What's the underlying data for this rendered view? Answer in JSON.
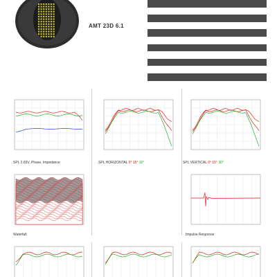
{
  "model": "AMT 23D 6.1",
  "spec_rows": [
    {
      "label": "",
      "value": ""
    },
    {
      "label": "",
      "value": ""
    },
    {
      "label": "",
      "value": ""
    },
    {
      "label": "",
      "value": ""
    },
    {
      "label": "",
      "value": ""
    },
    {
      "label": "",
      "value": ""
    },
    {
      "label": "",
      "value": ""
    },
    {
      "label": "",
      "value": ""
    },
    {
      "label": "",
      "value": ""
    },
    {
      "label": "",
      "value": ""
    },
    {
      "label": "",
      "value": ""
    },
    {
      "label": "",
      "value": ""
    }
  ],
  "charts": {
    "impedance": {
      "caption": "SPL 2.83V, Phase, Impedance"
    },
    "horizontal": {
      "caption_prefix": "SPL HORIZONTAL",
      "angles": [
        "0°",
        "15°",
        "30°"
      ]
    },
    "vertical": {
      "caption_prefix": "SPL VERTICAL",
      "angles": [
        "0°",
        "15°",
        "30°"
      ]
    },
    "waterfall": {
      "caption": "Waterfall"
    },
    "impulse": {
      "caption": "Impulse Response"
    }
  },
  "colors": {
    "spec_dark": "#4a4a4a",
    "curve_red": "#e02020",
    "curve_green": "#20b020",
    "curve_blue": "#2040e0",
    "waterfall_red": "#e02020",
    "waterfall_gray": "#9a9a9a"
  },
  "icons": {
    "driver": "amt-tweeter-photo"
  }
}
